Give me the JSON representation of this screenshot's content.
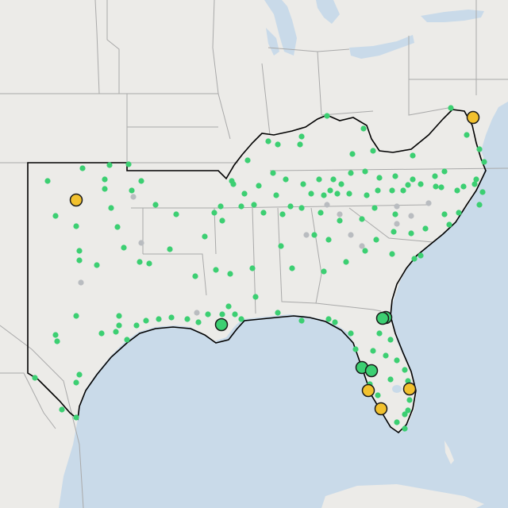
{
  "map": {
    "title": "",
    "colors": {
      "water": "#c9dae9",
      "land": "#ecebe8",
      "state_border": "#a9a9a9",
      "region_outline": "#000000",
      "green_marker": "#3ccf72",
      "gray_marker": "#b9bcc0",
      "yellow_marker": "#f2c12e",
      "large_green_marker": "#3ccf72"
    },
    "marker_types": [
      {
        "key": "small-green",
        "shape": "dot"
      },
      {
        "key": "small-gray",
        "shape": "dot"
      },
      {
        "key": "large-yellow",
        "shape": "circle-outlined"
      },
      {
        "key": "large-green",
        "shape": "circle-outlined"
      }
    ]
  }
}
